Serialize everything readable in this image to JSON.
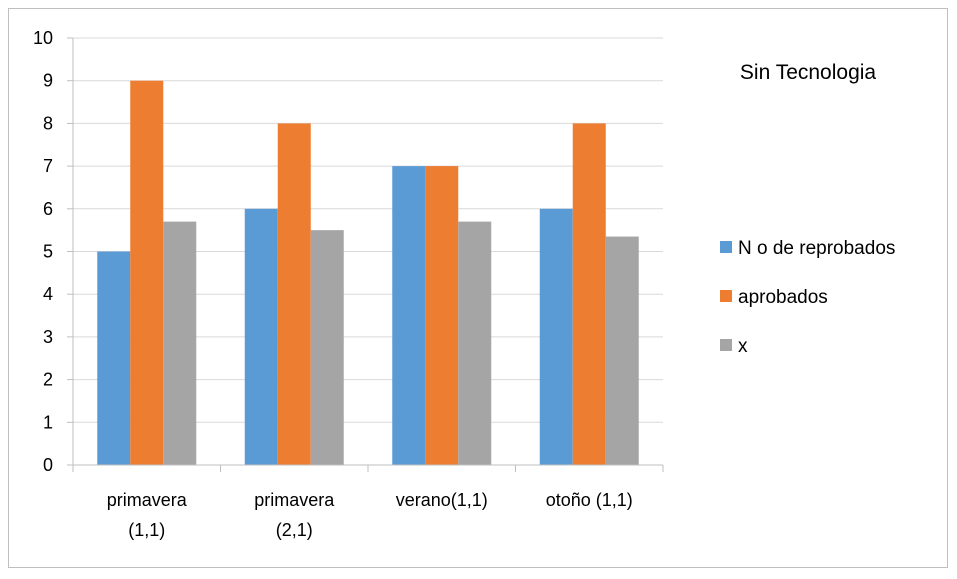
{
  "chart_data": {
    "type": "bar",
    "title": "Sin Tecnologia",
    "categories": [
      [
        "primavera",
        "(1,1)"
      ],
      [
        "primavera",
        "(2,1)"
      ],
      [
        "verano(1,1)"
      ],
      [
        "otoño (1,1)"
      ]
    ],
    "series": [
      {
        "name": "N o de reprobados",
        "color": "#5b9bd5",
        "values": [
          5,
          6,
          7,
          6
        ]
      },
      {
        "name": "aprobados",
        "color": "#ed7d31",
        "values": [
          9,
          8,
          7,
          8
        ]
      },
      {
        "name": "x",
        "color": "#a5a5a5",
        "values": [
          5.7,
          5.5,
          5.7,
          5.35
        ]
      }
    ],
    "ylim": [
      0,
      10
    ],
    "yticks": [
      0,
      1,
      2,
      3,
      4,
      5,
      6,
      7,
      8,
      9,
      10
    ],
    "grid": true,
    "legend_position": "right"
  }
}
